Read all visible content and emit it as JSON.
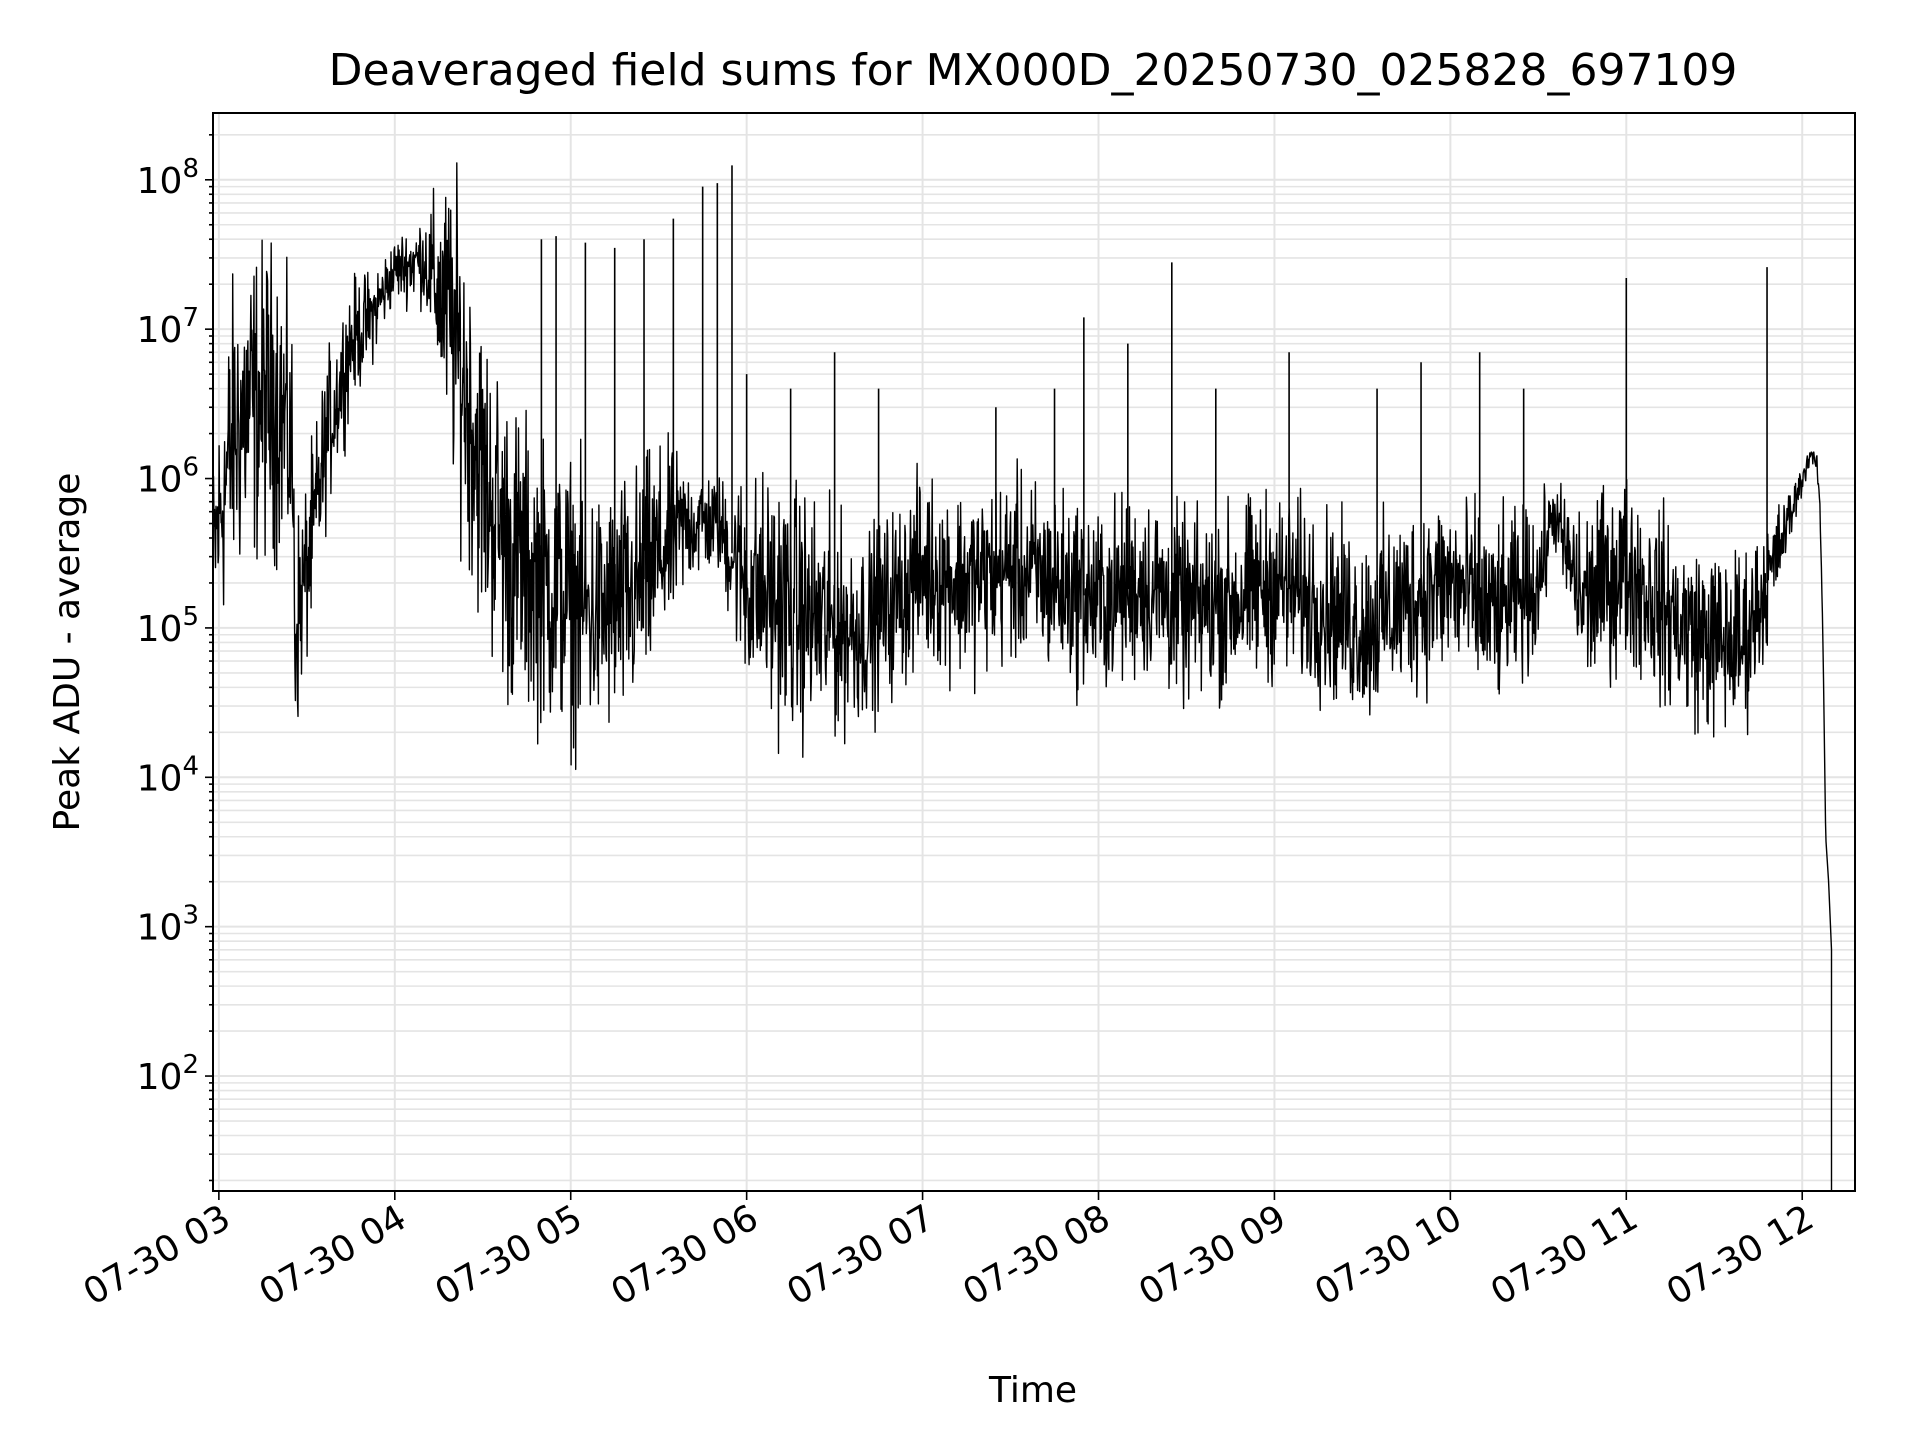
{
  "chart_data": {
    "type": "line",
    "title": "Deaveraged field sums for MX000D_20250730_025828_697109",
    "xlabel": "Time",
    "ylabel": "Peak ADU - average",
    "x_scale": "time",
    "y_scale": "log",
    "xlim": [
      "2025-07-30 02:58",
      "2025-07-30 12:18"
    ],
    "ylim": [
      17,
      280000000
    ],
    "grid": true,
    "line_color": "#000000",
    "x_tick_labels": [
      "07-30 03",
      "07-30 04",
      "07-30 05",
      "07-30 06",
      "07-30 07",
      "07-30 08",
      "07-30 09",
      "07-30 10",
      "07-30 11",
      "07-30 12"
    ],
    "x_tick_values": [
      "2025-07-30 03:00",
      "2025-07-30 04:00",
      "2025-07-30 05:00",
      "2025-07-30 06:00",
      "2025-07-30 07:00",
      "2025-07-30 08:00",
      "2025-07-30 09:00",
      "2025-07-30 10:00",
      "2025-07-30 11:00",
      "2025-07-30 12:00"
    ],
    "y_ticks": [
      {
        "value": 100,
        "base": "10",
        "exp": "2"
      },
      {
        "value": 1000,
        "base": "10",
        "exp": "3"
      },
      {
        "value": 10000,
        "base": "10",
        "exp": "4"
      },
      {
        "value": 100000,
        "base": "10",
        "exp": "5"
      },
      {
        "value": 1000000,
        "base": "10",
        "exp": "6"
      },
      {
        "value": 10000000,
        "base": "10",
        "exp": "7"
      },
      {
        "value": 100000000,
        "base": "10",
        "exp": "8"
      }
    ],
    "series": [
      {
        "x": [
          "2025-07-30 02:58",
          "2025-07-30 03:05",
          "2025-07-30 03:10",
          "2025-07-30 03:20",
          "2025-07-30 03:25",
          "2025-07-30 03:26",
          "2025-07-30 03:28",
          "2025-07-30 03:32",
          "2025-07-30 03:37",
          "2025-07-30 03:45",
          "2025-07-30 03:52",
          "2025-07-30 04:00",
          "2025-07-30 04:10",
          "2025-07-30 04:20",
          "2025-07-30 04:30",
          "2025-07-30 04:40",
          "2025-07-30 04:50",
          "2025-07-30 05:00",
          "2025-07-30 05:10",
          "2025-07-30 05:20",
          "2025-07-30 05:30",
          "2025-07-30 05:40",
          "2025-07-30 05:50",
          "2025-07-30 06:00",
          "2025-07-30 06:10",
          "2025-07-30 06:20",
          "2025-07-30 06:30",
          "2025-07-30 06:40",
          "2025-07-30 06:50",
          "2025-07-30 07:00",
          "2025-07-30 07:15",
          "2025-07-30 07:30",
          "2025-07-30 07:45",
          "2025-07-30 08:00",
          "2025-07-30 08:15",
          "2025-07-30 08:30",
          "2025-07-30 08:45",
          "2025-07-30 09:00",
          "2025-07-30 09:15",
          "2025-07-30 09:30",
          "2025-07-30 09:45",
          "2025-07-30 10:00",
          "2025-07-30 10:15",
          "2025-07-30 10:30",
          "2025-07-30 10:35",
          "2025-07-30 10:45",
          "2025-07-30 11:00",
          "2025-07-30 11:10",
          "2025-07-30 11:20",
          "2025-07-30 11:30",
          "2025-07-30 11:40",
          "2025-07-30 11:48",
          "2025-07-30 11:55",
          "2025-07-30 12:00",
          "2025-07-30 12:03",
          "2025-07-30 12:05",
          "2025-07-30 12:06",
          "2025-07-30 12:07",
          "2025-07-30 12:08",
          "2025-07-30 12:09",
          "2025-07-30 12:10",
          "2025-07-30 12:10"
        ],
        "y": [
          300000,
          2000000,
          3000000,
          3500000,
          1500000,
          100000,
          150000,
          400000,
          2000000,
          8000000,
          12000000,
          25000000,
          30000000,
          10000000,
          1000000,
          300000,
          200000,
          150000,
          120000,
          150000,
          300000,
          500000,
          500000,
          200000,
          150000,
          120000,
          100000,
          100000,
          150000,
          250000,
          200000,
          250000,
          200000,
          150000,
          200000,
          130000,
          150000,
          200000,
          150000,
          100000,
          150000,
          200000,
          120000,
          200000,
          600000,
          150000,
          250000,
          150000,
          100000,
          80000,
          80000,
          200000,
          500000,
          1000000,
          1500000,
          1200000,
          700000,
          100000,
          4000,
          2000,
          700,
          17
        ],
        "noise_amplitude": [
          0.3,
          0.5,
          0.5,
          0.5,
          0.4,
          0.4,
          0.3,
          0.3,
          0.25,
          0.2,
          0.15,
          0.1,
          0.15,
          0.5,
          0.5,
          0.5,
          0.45,
          0.45,
          0.4,
          0.4,
          0.35,
          0.2,
          0.15,
          0.35,
          0.4,
          0.4,
          0.35,
          0.3,
          0.3,
          0.3,
          0.3,
          0.3,
          0.3,
          0.3,
          0.3,
          0.3,
          0.3,
          0.3,
          0.3,
          0.3,
          0.3,
          0.3,
          0.3,
          0.25,
          0.1,
          0.3,
          0.3,
          0.3,
          0.3,
          0.3,
          0.3,
          0.2,
          0.1,
          0.05,
          0.03,
          0.03,
          0.03,
          0.0,
          0.0,
          0.0,
          0.0,
          0.0
        ]
      }
    ],
    "spikes": [
      {
        "x": "2025-07-30 04:50",
        "y": 40000000
      },
      {
        "x": "2025-07-30 04:55",
        "y": 42000000
      },
      {
        "x": "2025-07-30 05:05",
        "y": 38000000
      },
      {
        "x": "2025-07-30 05:15",
        "y": 35000000
      },
      {
        "x": "2025-07-30 05:25",
        "y": 40000000
      },
      {
        "x": "2025-07-30 05:35",
        "y": 55000000
      },
      {
        "x": "2025-07-30 05:45",
        "y": 90000000
      },
      {
        "x": "2025-07-30 05:50",
        "y": 95000000
      },
      {
        "x": "2025-07-30 05:55",
        "y": 125000000
      },
      {
        "x": "2025-07-30 06:00",
        "y": 5000000
      },
      {
        "x": "2025-07-30 06:15",
        "y": 4000000
      },
      {
        "x": "2025-07-30 06:30",
        "y": 7000000
      },
      {
        "x": "2025-07-30 06:45",
        "y": 4000000
      },
      {
        "x": "2025-07-30 07:25",
        "y": 3000000
      },
      {
        "x": "2025-07-30 07:45",
        "y": 4000000
      },
      {
        "x": "2025-07-30 07:55",
        "y": 12000000
      },
      {
        "x": "2025-07-30 08:10",
        "y": 8000000
      },
      {
        "x": "2025-07-30 08:25",
        "y": 28000000
      },
      {
        "x": "2025-07-30 08:40",
        "y": 4000000
      },
      {
        "x": "2025-07-30 09:05",
        "y": 7000000
      },
      {
        "x": "2025-07-30 09:35",
        "y": 4000000
      },
      {
        "x": "2025-07-30 09:50",
        "y": 6000000
      },
      {
        "x": "2025-07-30 10:10",
        "y": 7000000
      },
      {
        "x": "2025-07-30 10:25",
        "y": 4000000
      },
      {
        "x": "2025-07-30 11:00",
        "y": 22000000
      },
      {
        "x": "2025-07-30 11:48",
        "y": 26000000
      }
    ]
  }
}
